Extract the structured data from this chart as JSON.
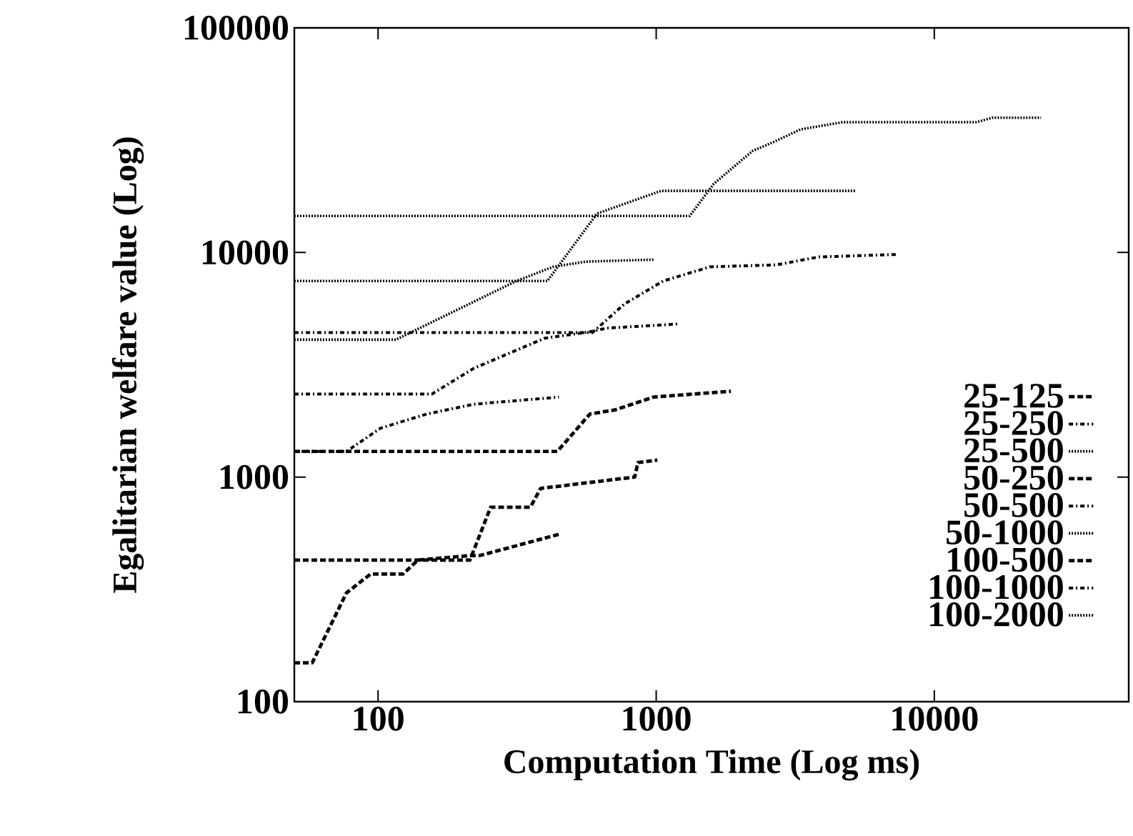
{
  "chart_data": {
    "type": "line",
    "xlabel": "Computation Time (Log ms)",
    "ylabel": "Egalitarian welfare value (Log)",
    "log": "xy",
    "xlim": [
      50,
      50000
    ],
    "ylim": [
      100,
      100000
    ],
    "xticks": [
      100,
      1000,
      10000
    ],
    "yticks": [
      100,
      1000,
      10000,
      100000
    ],
    "legend": "bottom right",
    "series": [
      {
        "name": "25-125",
        "color": "#000000",
        "line_style": "dashed",
        "x": [
          50,
          58,
          77,
          94,
          123,
          139,
          214,
          232,
          447
        ],
        "values": [
          149,
          149,
          305,
          370,
          370,
          427,
          447,
          447,
          556
        ]
      },
      {
        "name": "25-250",
        "color": "#000000",
        "line_style": "dashdot",
        "x": [
          50,
          77,
          102,
          150,
          221,
          447
        ],
        "values": [
          1300,
          1300,
          1650,
          1910,
          2110,
          2270
        ]
      },
      {
        "name": "25-500",
        "color": "#000000",
        "line_style": "dotted",
        "x": [
          50,
          116,
          314,
          426,
          557,
          990
        ],
        "values": [
          4090,
          4090,
          7460,
          8630,
          9100,
          9300
        ]
      },
      {
        "name": "50-250",
        "color": "#000000",
        "line_style": "dashed",
        "x": [
          50,
          214,
          254,
          353,
          384,
          837,
          860,
          1010
        ],
        "values": [
          427,
          427,
          734,
          734,
          890,
          1000,
          1160,
          1190
        ]
      },
      {
        "name": "50-500",
        "color": "#000000",
        "line_style": "dashdot",
        "x": [
          50,
          156,
          221,
          397,
          590,
          660,
          1190
        ],
        "values": [
          2340,
          2340,
          3050,
          4150,
          4450,
          4600,
          4800
        ]
      },
      {
        "name": "50-1000",
        "color": "#000000",
        "line_style": "dotted",
        "x": [
          50,
          406,
          613,
          1040,
          5200
        ],
        "values": [
          7460,
          7460,
          14900,
          18800,
          18800
        ]
      },
      {
        "name": "100-500",
        "color": "#000000",
        "line_style": "dashed",
        "x": [
          50,
          441,
          578,
          711,
          978,
          1855
        ],
        "values": [
          1300,
          1300,
          1910,
          1990,
          2270,
          2410
        ]
      },
      {
        "name": "100-1000",
        "color": "#000000",
        "line_style": "dashdot",
        "x": [
          50,
          590,
          770,
          1060,
          1560,
          2700,
          3840,
          7380
        ],
        "values": [
          4400,
          4400,
          5900,
          7460,
          8630,
          8800,
          9550,
          9800
        ]
      },
      {
        "name": "100-2000",
        "color": "#000000",
        "line_style": "dotted",
        "x": [
          50,
          1320,
          1610,
          2220,
          2640,
          3300,
          4670,
          14100,
          16200,
          24200
        ],
        "values": [
          14530,
          14530,
          20200,
          28300,
          31000,
          35300,
          38000,
          38000,
          39800,
          39800
        ]
      }
    ]
  }
}
